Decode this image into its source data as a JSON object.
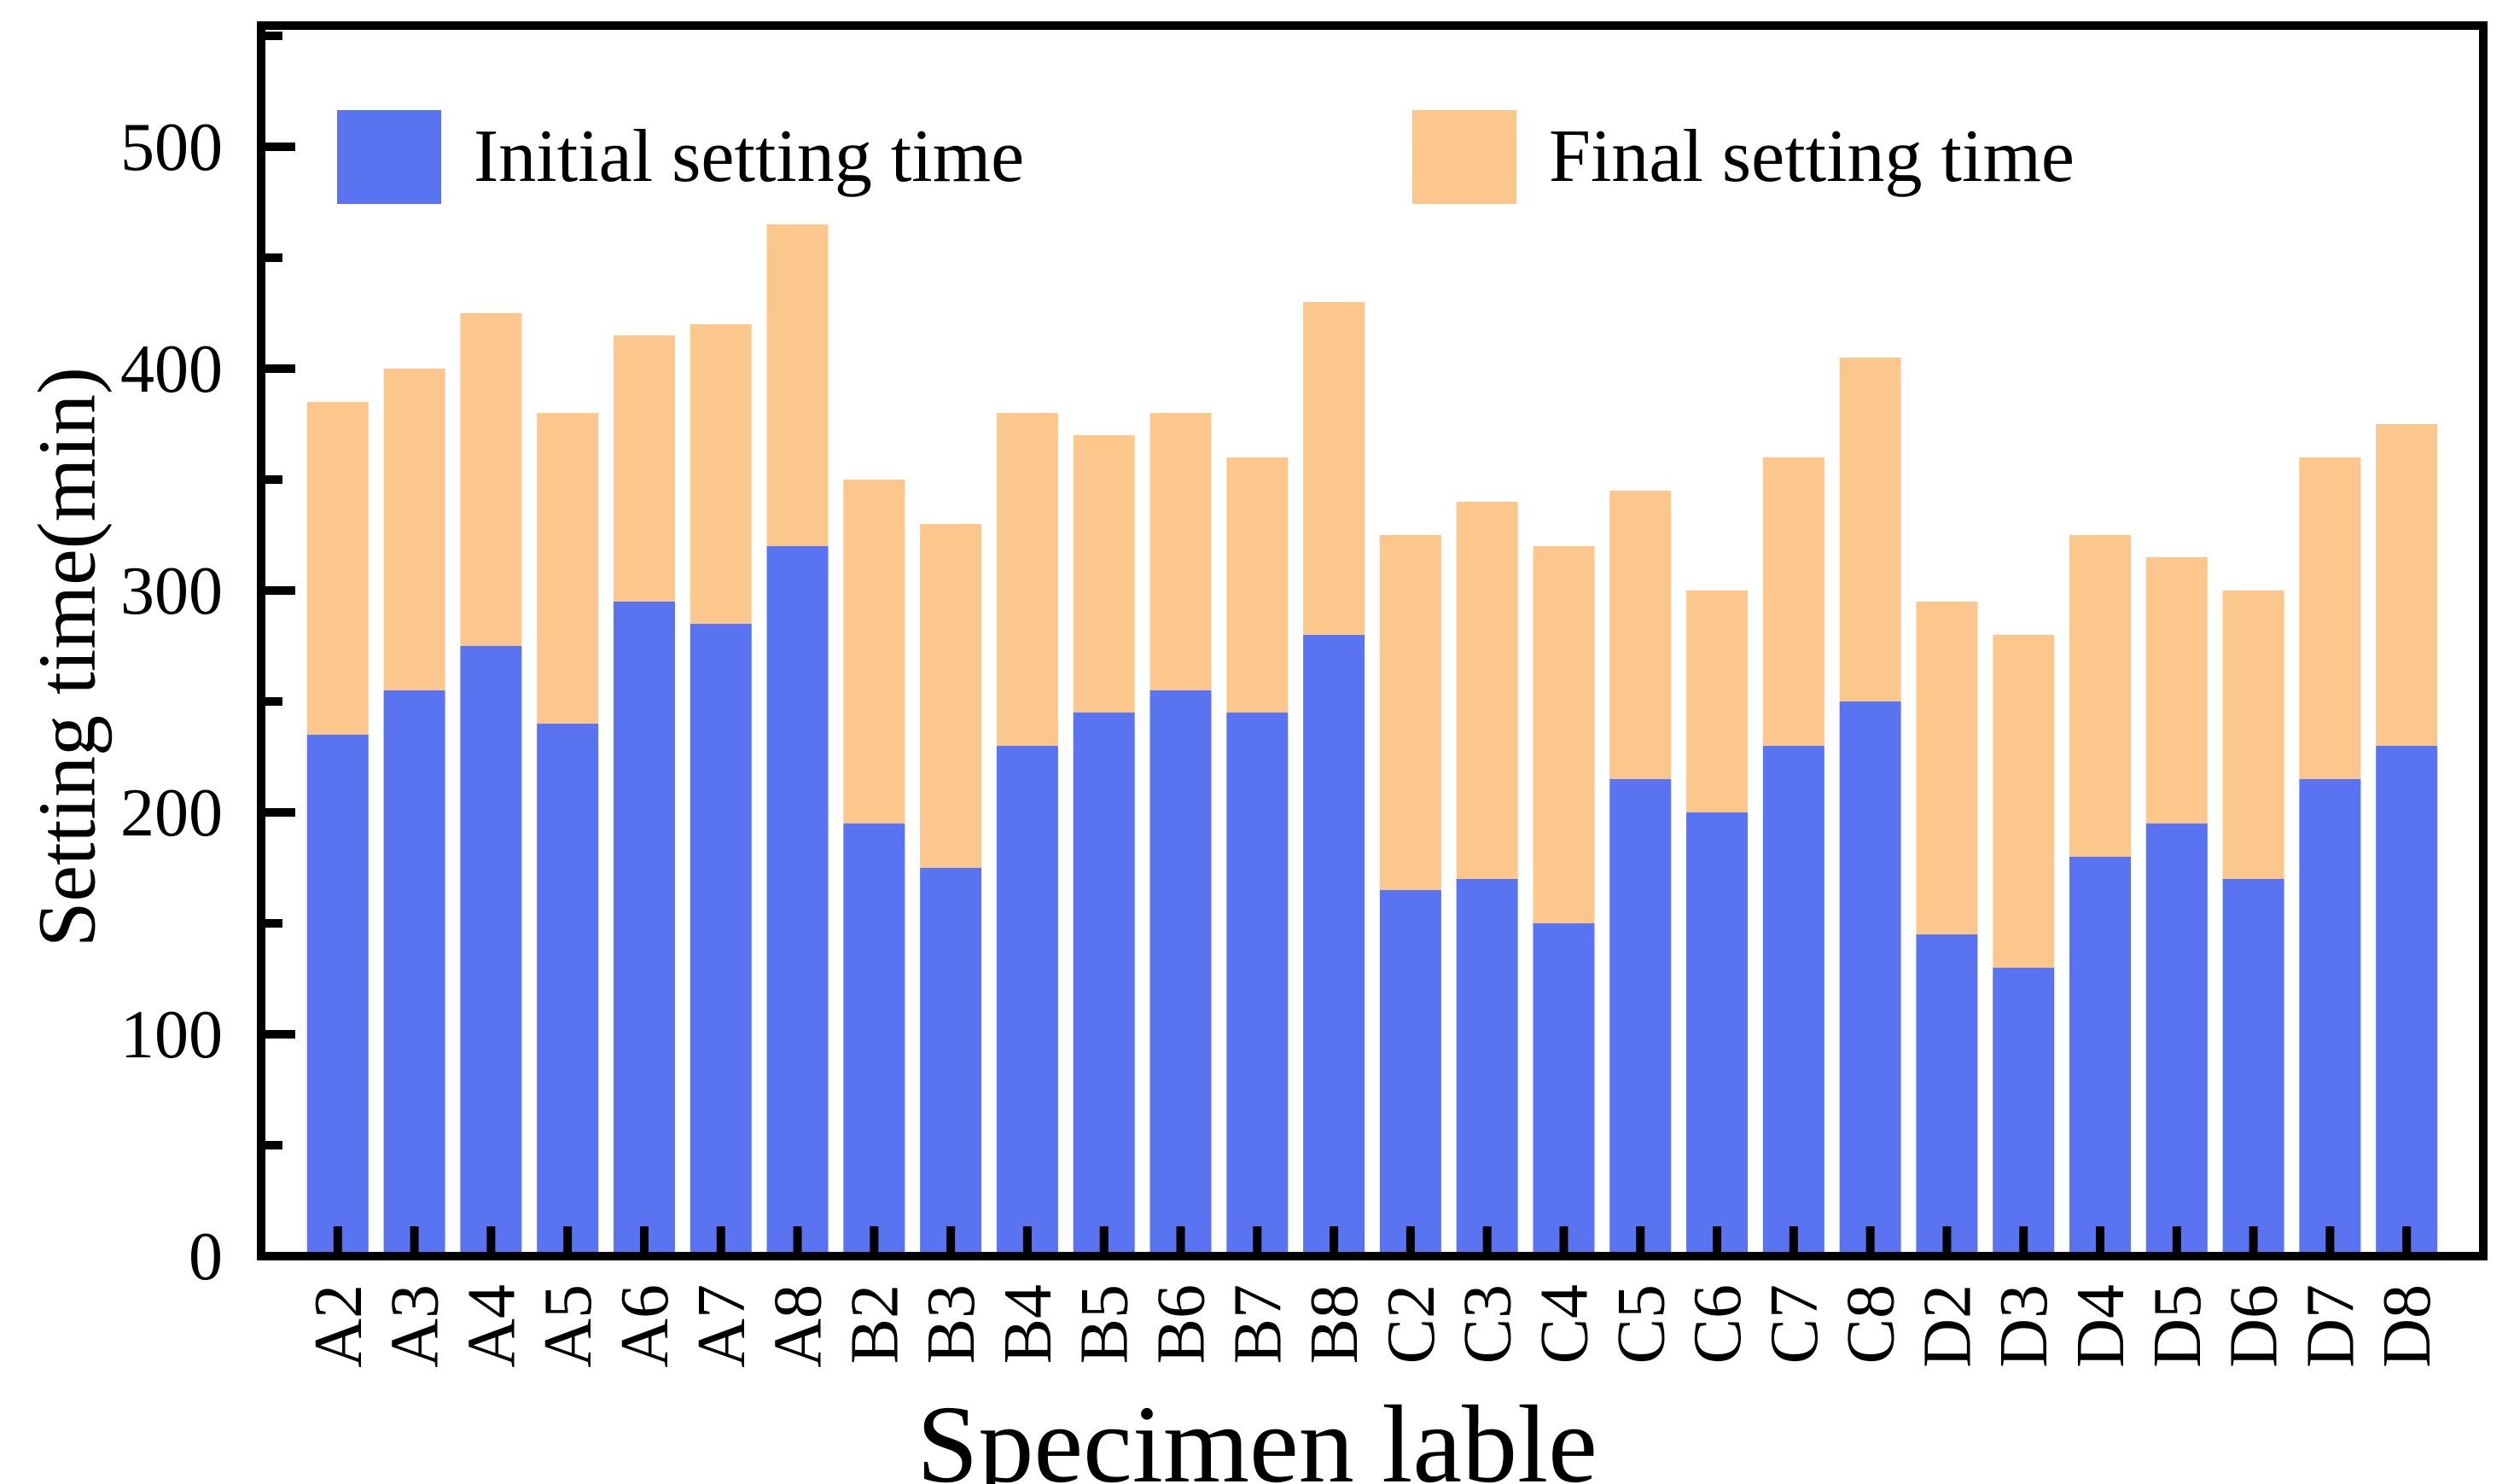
{
  "figure": {
    "background": "#ffffff",
    "frame_color": "#000000",
    "xlabel": "Specimen lable",
    "ylabel": "Setting time(min)",
    "legend": {
      "items": [
        {
          "label": "Initial setting time",
          "color": "#5A73F1"
        },
        {
          "label": "Final setting time",
          "color": "#FBC78D"
        }
      ]
    }
  },
  "chart_data": {
    "type": "bar",
    "stacked": true,
    "title": "",
    "xlabel": "Specimen lable",
    "ylabel": "Setting time(min)",
    "categories": [
      "A2",
      "A3",
      "A4",
      "A5",
      "A6",
      "A7",
      "A8",
      "B2",
      "B3",
      "B4",
      "B5",
      "B6",
      "B7",
      "B8",
      "C2",
      "C3",
      "C4",
      "C5",
      "C6",
      "C7",
      "C8",
      "D2",
      "D3",
      "D4",
      "D5",
      "D6",
      "D7",
      "D8"
    ],
    "series": [
      {
        "name": "Initial setting time",
        "color": "#5A73F1",
        "values": [
          235,
          255,
          275,
          240,
          295,
          285,
          320,
          195,
          175,
          230,
          245,
          255,
          245,
          280,
          165,
          170,
          150,
          215,
          200,
          230,
          250,
          145,
          130,
          180,
          195,
          170,
          215,
          230
        ]
      },
      {
        "name": "Final setting time",
        "color": "#FBC78D",
        "role": "totals — orange segment is drawn from the initial value up to this total",
        "values": [
          385,
          400,
          425,
          380,
          415,
          420,
          465,
          350,
          330,
          380,
          370,
          380,
          360,
          430,
          325,
          340,
          320,
          345,
          300,
          360,
          405,
          295,
          280,
          325,
          315,
          300,
          360,
          375
        ]
      }
    ],
    "ylim": [
      0,
      554
    ],
    "y_ticks": [
      0,
      100,
      200,
      300,
      400,
      500
    ],
    "y_minor_ticks": [
      50,
      150,
      250,
      350,
      450,
      550
    ],
    "grid": false,
    "legend_position": "top-inside"
  }
}
